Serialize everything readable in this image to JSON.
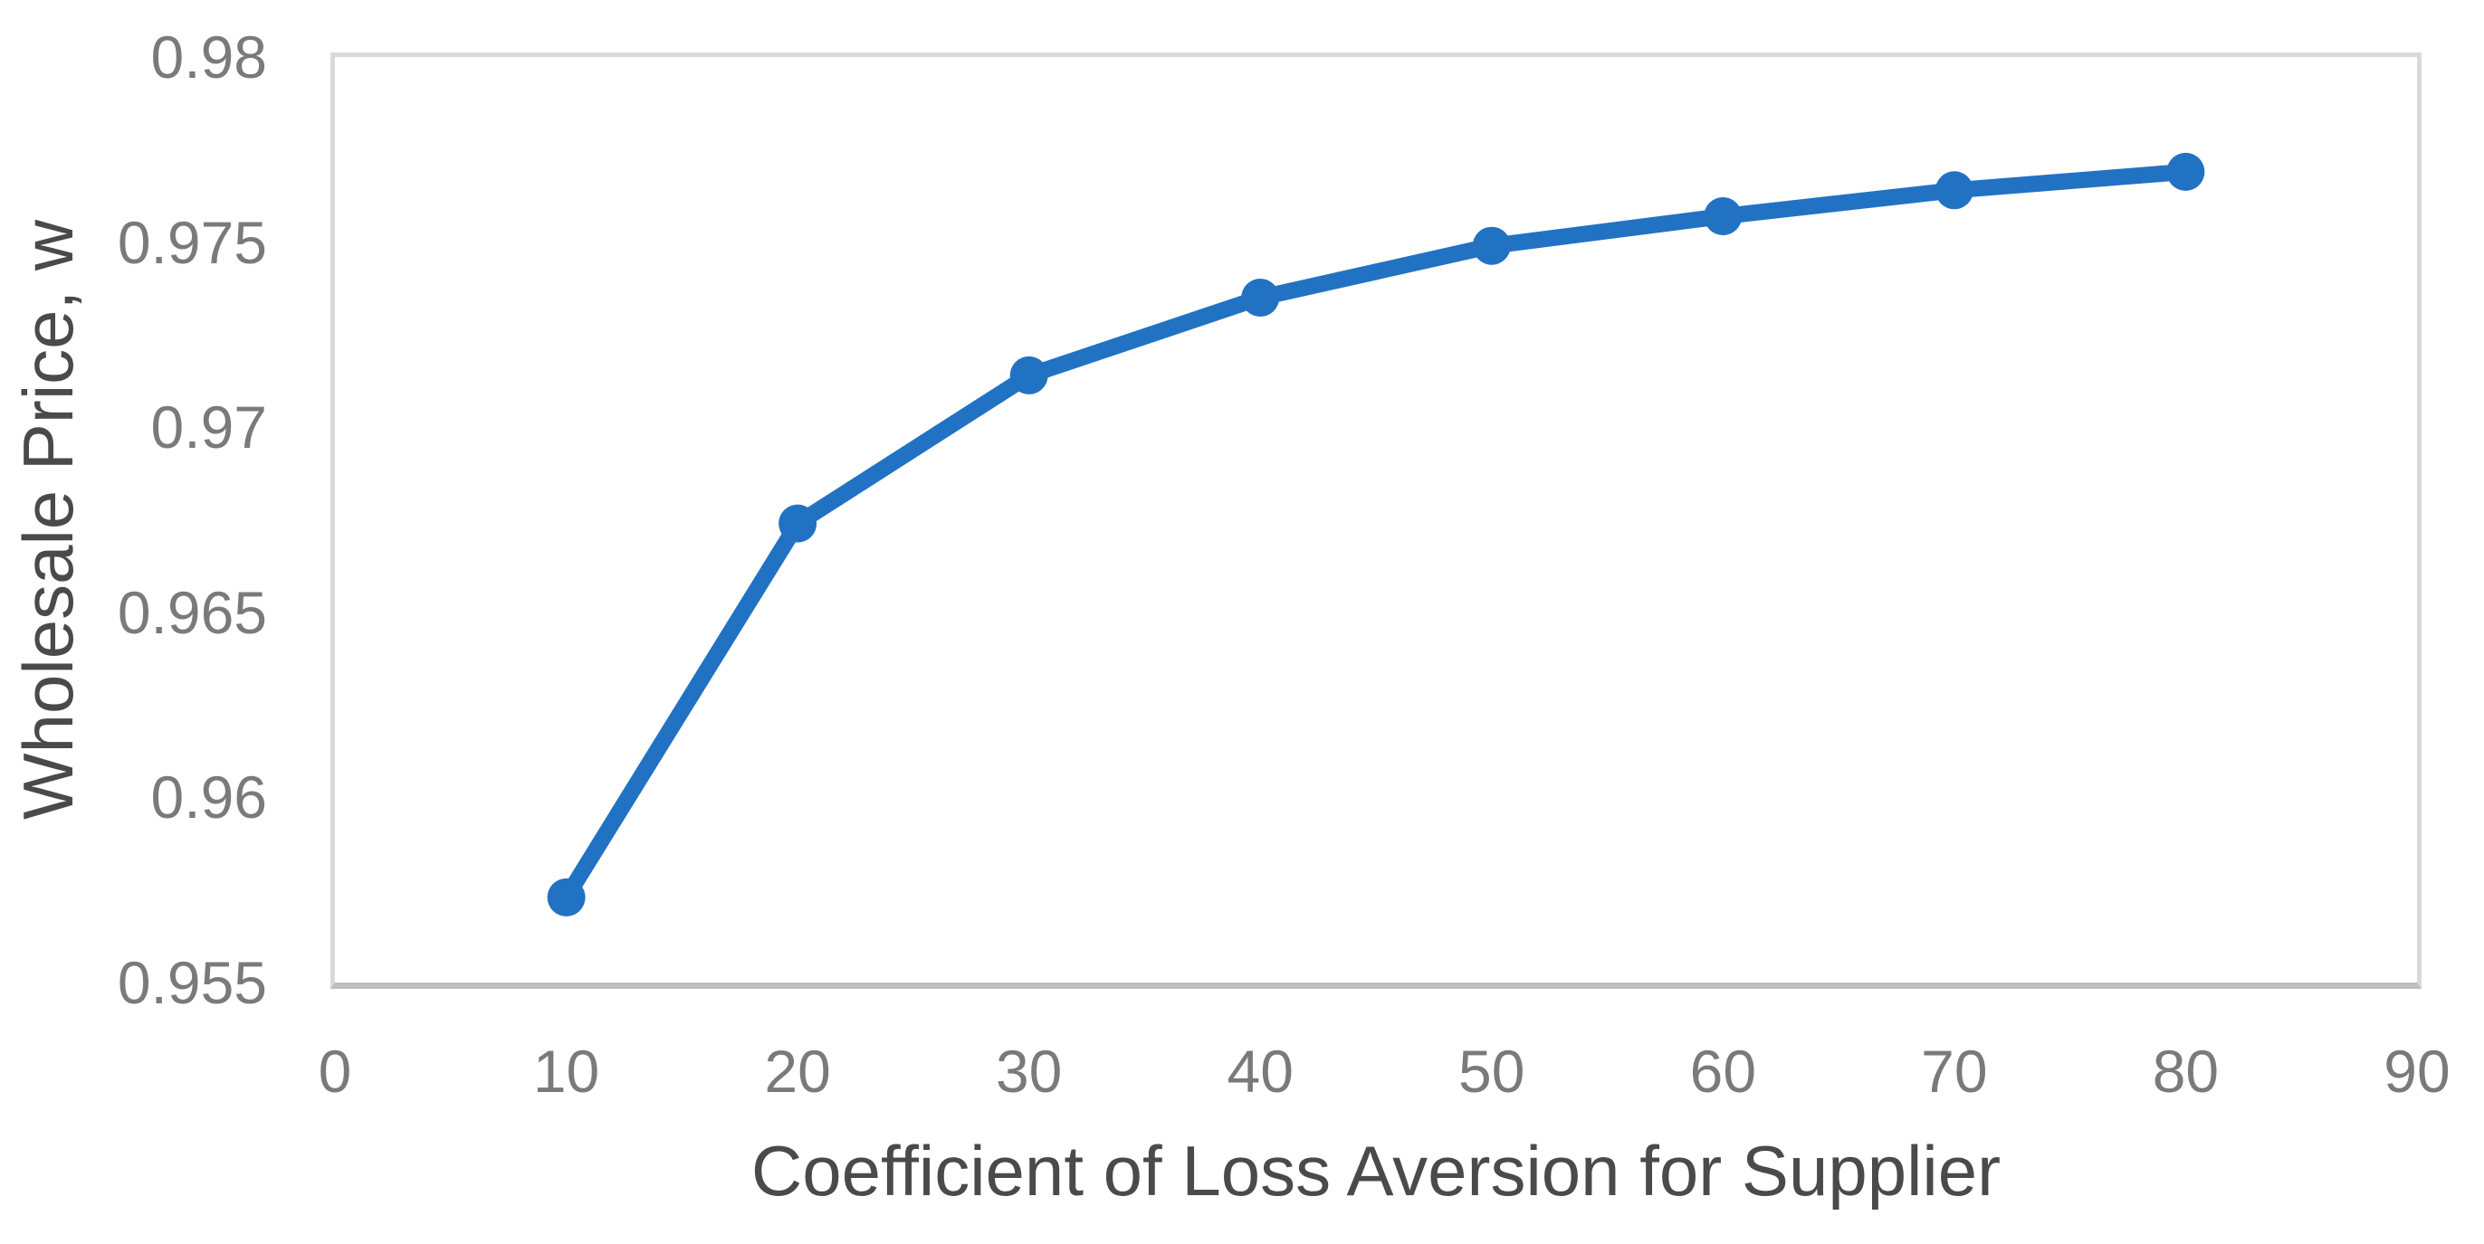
{
  "chart_data": {
    "type": "line",
    "title": "",
    "xlabel": "Coefficient of Loss Aversion for Supplier",
    "ylabel": "Wholesale Price, w",
    "x": [
      10,
      20,
      30,
      40,
      50,
      60,
      70,
      80
    ],
    "series": [
      {
        "name": "Wholesale Price, w",
        "values": [
          0.9573,
          0.9674,
          0.9714,
          0.9735,
          0.9749,
          0.9757,
          0.9764,
          0.9769
        ]
      }
    ],
    "xlim": [
      0,
      90
    ],
    "ylim": [
      0.955,
      0.98
    ],
    "x_ticks": [
      {
        "label": "0",
        "value": 0
      },
      {
        "label": "10",
        "value": 10
      },
      {
        "label": "20",
        "value": 20
      },
      {
        "label": "30",
        "value": 30
      },
      {
        "label": "40",
        "value": 40
      },
      {
        "label": "50",
        "value": 50
      },
      {
        "label": "60",
        "value": 60
      },
      {
        "label": "70",
        "value": 70
      },
      {
        "label": "80",
        "value": 80
      },
      {
        "label": "90",
        "value": 90
      }
    ],
    "y_ticks": [
      {
        "label": "0.98",
        "value": 0.98
      },
      {
        "label": "0.975",
        "value": 0.975
      },
      {
        "label": "0.97",
        "value": 0.97
      },
      {
        "label": "0.965",
        "value": 0.965
      },
      {
        "label": "0.96",
        "value": 0.96
      },
      {
        "label": "0.955",
        "value": 0.955
      }
    ],
    "grid": false,
    "legend_position": "none",
    "line_color": "#2272C3",
    "marker": "circle",
    "marker_color": "#2272C3",
    "plot_border_color": "#D9D9D9",
    "axis_line_color": "#BFBFBF",
    "tick_label_color": "#7A7A7A",
    "axis_title_color": "#4A4A4A"
  }
}
